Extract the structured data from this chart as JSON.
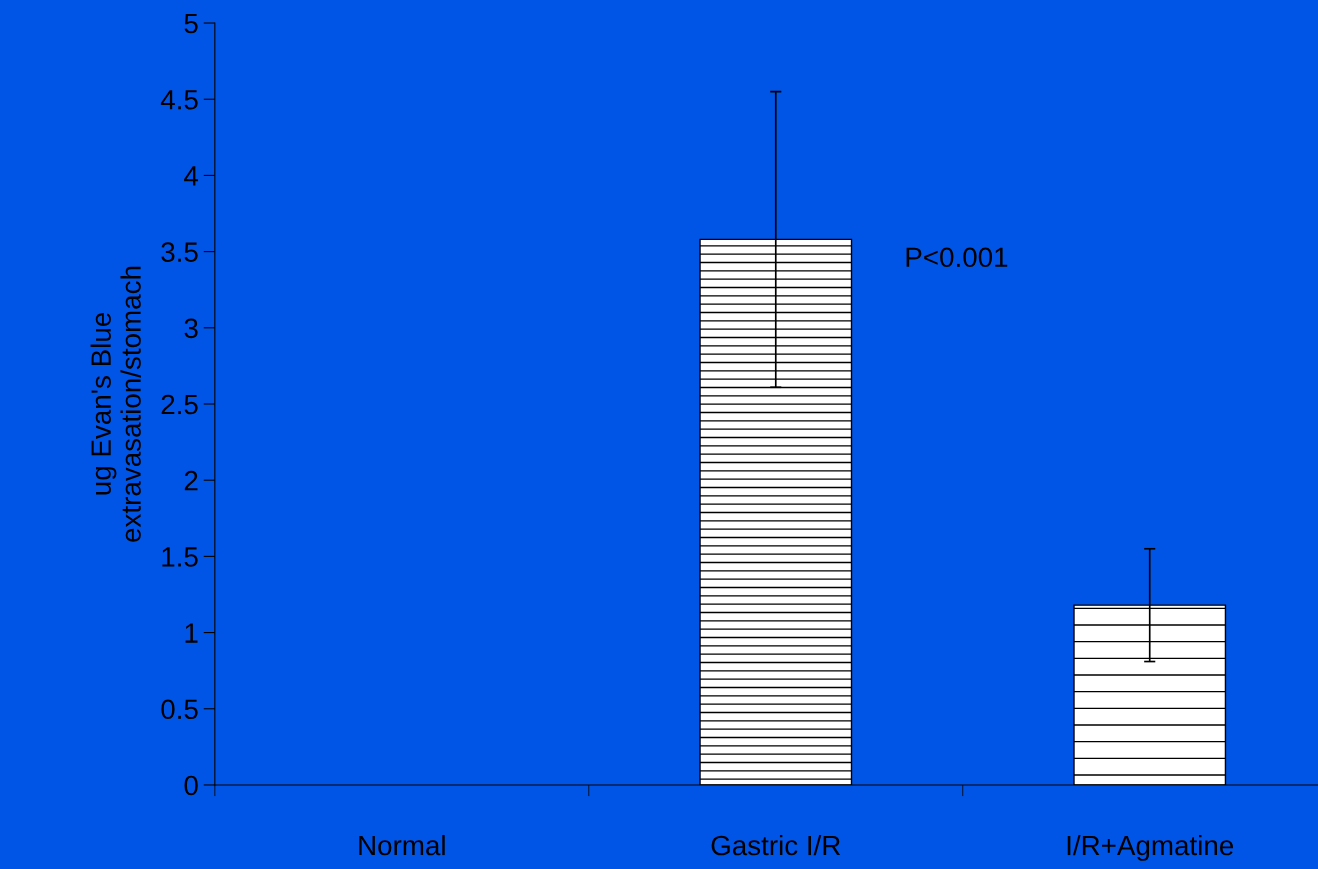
{
  "chart_data": {
    "type": "bar",
    "ylabel": "ug Evan's Blue\nextravasation/stomach",
    "categories": [
      "Normal",
      "Gastric I/R",
      "I/R+Agmatine"
    ],
    "values": [
      0,
      3.58,
      1.18
    ],
    "errors": [
      null,
      0.97,
      0.37
    ],
    "colors": [
      "#ffffff",
      "#ffffff",
      "#ffffff"
    ],
    "ylim": [
      0,
      5
    ],
    "yticks": [
      0,
      0.5,
      1,
      1.5,
      2,
      2.5,
      3,
      3.5,
      4,
      4.5,
      5
    ],
    "annotations": [
      "P<0.001"
    ],
    "grid": false
  }
}
